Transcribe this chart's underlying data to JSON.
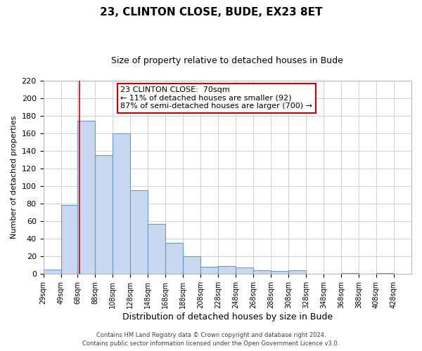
{
  "title": "23, CLINTON CLOSE, BUDE, EX23 8ET",
  "subtitle": "Size of property relative to detached houses in Bude",
  "xlabel": "Distribution of detached houses by size in Bude",
  "ylabel": "Number of detached properties",
  "bar_left_edges": [
    29,
    49,
    68,
    88,
    108,
    128,
    148,
    168,
    188,
    208,
    228,
    248,
    268,
    288,
    308,
    328,
    348,
    368,
    388,
    408
  ],
  "bar_heights": [
    5,
    78,
    174,
    135,
    160,
    95,
    57,
    35,
    20,
    8,
    9,
    7,
    4,
    3,
    4,
    0,
    0,
    1,
    0,
    1
  ],
  "bar_widths": [
    20,
    19,
    20,
    20,
    20,
    20,
    20,
    20,
    20,
    20,
    20,
    20,
    20,
    20,
    20,
    20,
    20,
    20,
    20,
    20
  ],
  "bar_color": "#c8d8ee",
  "bar_edgecolor": "#6699cc",
  "tick_labels": [
    "29sqm",
    "49sqm",
    "68sqm",
    "88sqm",
    "108sqm",
    "128sqm",
    "148sqm",
    "168sqm",
    "188sqm",
    "208sqm",
    "228sqm",
    "248sqm",
    "268sqm",
    "288sqm",
    "308sqm",
    "328sqm",
    "348sqm",
    "368sqm",
    "388sqm",
    "408sqm",
    "428sqm"
  ],
  "tick_positions": [
    29,
    49,
    68,
    88,
    108,
    128,
    148,
    168,
    188,
    208,
    228,
    248,
    268,
    288,
    308,
    328,
    348,
    368,
    388,
    408,
    428
  ],
  "ylim": [
    0,
    220
  ],
  "yticks": [
    0,
    20,
    40,
    60,
    80,
    100,
    120,
    140,
    160,
    180,
    200,
    220
  ],
  "xlim": [
    29,
    448
  ],
  "property_line_x": 70,
  "property_line_color": "#cc0000",
  "annotation_title": "23 CLINTON CLOSE:  70sqm",
  "annotation_line1": "← 11% of detached houses are smaller (92)",
  "annotation_line2": "87% of semi-detached houses are larger (700) →",
  "annotation_box_color": "#ffffff",
  "annotation_box_edgecolor": "#cc0000",
  "footer1": "Contains HM Land Registry data © Crown copyright and database right 2024.",
  "footer2": "Contains public sector information licensed under the Open Government Licence v3.0.",
  "grid_color": "#cccccc",
  "background_color": "#ffffff"
}
